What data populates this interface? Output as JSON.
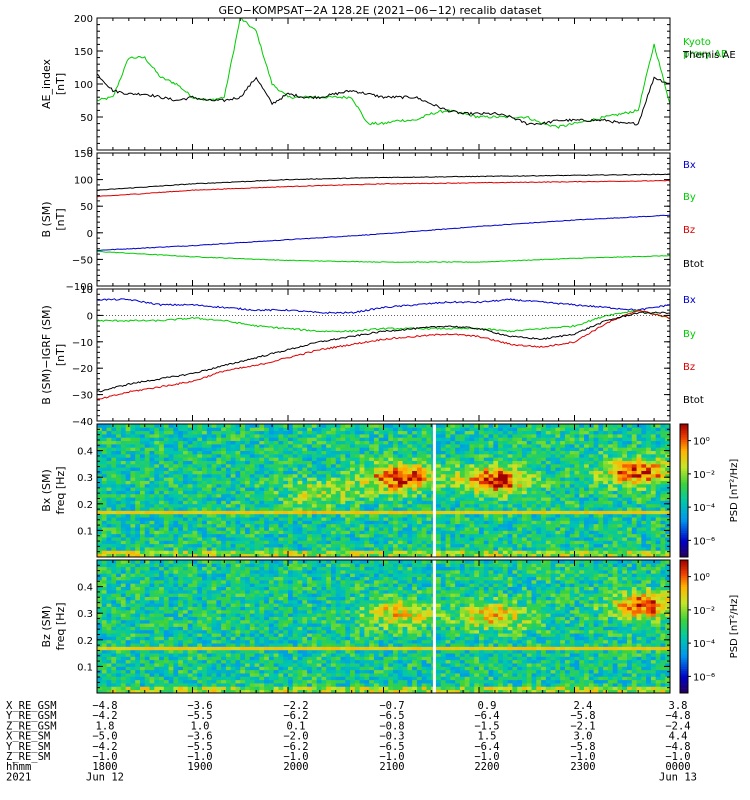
{
  "title": "GEO−KOMPSAT−2A 128.2E (2021−06−12) recalib dataset",
  "chart_data": [
    {
      "type": "line",
      "ylabel": "AE_index",
      "yunit": "[nT]",
      "ylim": [
        0,
        200
      ],
      "yticks": [
        0,
        50,
        100,
        150,
        200
      ],
      "x": [
        1800,
        1810,
        1820,
        1830,
        1840,
        1850,
        1900,
        1910,
        1920,
        1930,
        1940,
        1950,
        2000,
        2010,
        2020,
        2030,
        2040,
        2050,
        2100,
        2110,
        2120,
        2130,
        2140,
        2150,
        2200,
        2210,
        2220,
        2230,
        2240,
        2250,
        2300,
        2310,
        2320,
        2330,
        2340,
        2350,
        2400
      ],
      "series": [
        {
          "name": "Kyoto proxy AE",
          "color": "#00cc00",
          "values": [
            75,
            80,
            140,
            140,
            110,
            100,
            80,
            75,
            80,
            200,
            180,
            100,
            80,
            80,
            80,
            80,
            80,
            40,
            40,
            45,
            45,
            55,
            60,
            55,
            50,
            50,
            50,
            50,
            40,
            35,
            40,
            45,
            50,
            55,
            60,
            160,
            70
          ]
        },
        {
          "name": "Themis AE",
          "color": "#000000",
          "values": [
            115,
            90,
            85,
            85,
            80,
            75,
            80,
            75,
            75,
            80,
            110,
            70,
            85,
            80,
            80,
            85,
            90,
            85,
            80,
            80,
            80,
            70,
            60,
            55,
            55,
            55,
            50,
            40,
            40,
            45,
            45,
            45,
            45,
            40,
            40,
            110,
            100
          ]
        }
      ]
    },
    {
      "type": "line",
      "ylabel": "B (SM)",
      "yunit": "[nT]",
      "ylim": [
        -100,
        150
      ],
      "yticks": [
        -100,
        -50,
        0,
        50,
        100,
        150
      ],
      "x": [
        1800,
        1900,
        2000,
        2100,
        2200,
        2300,
        2400
      ],
      "series": [
        {
          "name": "Bx",
          "color": "#0000cc",
          "values": [
            -33,
            -24,
            -13,
            -2,
            12,
            24,
            33
          ]
        },
        {
          "name": "By",
          "color": "#00cc00",
          "values": [
            -35,
            -45,
            -52,
            -55,
            -55,
            -48,
            -43
          ]
        },
        {
          "name": "Bz",
          "color": "#dd0000",
          "values": [
            68,
            80,
            87,
            92,
            94,
            96,
            98
          ]
        },
        {
          "name": "Btot",
          "color": "#000000",
          "values": [
            80,
            92,
            100,
            104,
            106,
            108,
            110
          ]
        }
      ]
    },
    {
      "type": "line",
      "ylabel": "B (SM)−IGRF (SM)",
      "yunit": "[nT]",
      "ylim": [
        -40,
        10
      ],
      "yticks": [
        -40,
        -30,
        -20,
        -10,
        0,
        10
      ],
      "x": [
        1800,
        1820,
        1840,
        1900,
        1920,
        1940,
        2000,
        2020,
        2040,
        2100,
        2120,
        2140,
        2200,
        2220,
        2240,
        2300,
        2320,
        2340,
        2400
      ],
      "series": [
        {
          "name": "Bx",
          "color": "#0000cc",
          "values": [
            6,
            6,
            4,
            4,
            3,
            2,
            2,
            1,
            1,
            3,
            4,
            5,
            5,
            6,
            5,
            4,
            3,
            2,
            4
          ]
        },
        {
          "name": "By",
          "color": "#00cc00",
          "values": [
            -2,
            -2,
            -2,
            -1,
            -2,
            -4,
            -5,
            -6,
            -6,
            -5,
            -5,
            -5,
            -5,
            -6,
            -5,
            -4,
            0,
            2,
            -1
          ]
        },
        {
          "name": "Bz",
          "color": "#dd0000",
          "values": [
            -32,
            -29,
            -27,
            -25,
            -21,
            -19,
            -16,
            -13,
            -11,
            -9,
            -8,
            -7,
            -8,
            -11,
            -12,
            -10,
            -3,
            2,
            -1
          ]
        },
        {
          "name": "Btot",
          "color": "#000000",
          "values": [
            -29,
            -26,
            -24,
            -22,
            -19,
            -16,
            -13,
            -10,
            -8,
            -6,
            -5,
            -4,
            -5,
            -8,
            -9,
            -7,
            -2,
            1,
            1
          ]
        }
      ]
    },
    {
      "type": "heatmap",
      "ylabel": "Bx (SM)",
      "yunit": "freq [Hz]",
      "ylim": [
        0,
        0.5
      ],
      "yticks": [
        0.1,
        0.2,
        0.3,
        0.4
      ],
      "colorbar_label": "PSD [nT²/Hz]",
      "colorbar_ticks": [
        "10⁰",
        "10⁻²",
        "10⁻⁴",
        "10⁻⁶"
      ],
      "colorbar_tick_values": [
        0,
        -2,
        -4,
        -6
      ],
      "colorbar_range": [
        -7,
        1
      ],
      "gap_x": 2132,
      "line_freq": 0.167,
      "hot_spots": [
        {
          "x": 2110,
          "f": 0.3,
          "strength": 1.0
        },
        {
          "x": 2210,
          "f": 0.29,
          "strength": 1.0
        },
        {
          "x": 2340,
          "f": 0.32,
          "strength": 0.9
        },
        {
          "x": 2020,
          "f": 0.24,
          "strength": 0.4
        }
      ]
    },
    {
      "type": "heatmap",
      "ylabel": "Bz (SM)",
      "yunit": "freq [Hz]",
      "ylim": [
        0,
        0.5
      ],
      "yticks": [
        0.1,
        0.2,
        0.3,
        0.4
      ],
      "colorbar_label": "PSD [nT²/Hz]",
      "colorbar_ticks": [
        "10⁰",
        "10⁻²",
        "10⁻⁴",
        "10⁻⁶"
      ],
      "colorbar_tick_values": [
        0,
        -2,
        -4,
        -6
      ],
      "colorbar_range": [
        -7,
        1
      ],
      "gap_x": 2132,
      "line_freq": 0.167,
      "hot_spots": [
        {
          "x": 2110,
          "f": 0.3,
          "strength": 0.6
        },
        {
          "x": 2210,
          "f": 0.29,
          "strength": 0.6
        },
        {
          "x": 2345,
          "f": 0.33,
          "strength": 0.9
        }
      ]
    }
  ],
  "ephemeris": {
    "rows": [
      {
        "label": "X_RE_GSM",
        "values": [
          "−4.8",
          "−3.6",
          "−2.2",
          "−0.7",
          "0.9",
          "2.4",
          "3.8"
        ]
      },
      {
        "label": "Y_RE_GSM",
        "values": [
          "−4.2",
          "−5.5",
          "−6.2",
          "−6.5",
          "−6.4",
          "−5.8",
          "−4.8"
        ]
      },
      {
        "label": "Z_RE_GSM",
        "values": [
          "1.8",
          "1.0",
          "0.1",
          "−0.8",
          "−1.5",
          "−2.1",
          "−2.4"
        ]
      },
      {
        "label": "X_RE_SM",
        "values": [
          "−5.0",
          "−3.6",
          "−2.0",
          "−0.3",
          "1.5",
          "3.0",
          "4.4"
        ]
      },
      {
        "label": "Y_RE_SM",
        "values": [
          "−4.2",
          "−5.5",
          "−6.2",
          "−6.5",
          "−6.4",
          "−5.8",
          "−4.8"
        ]
      },
      {
        "label": "Z_RE_SM",
        "values": [
          "−1.0",
          "−1.0",
          "−1.0",
          "−1.0",
          "−1.0",
          "−1.0",
          "−1.0"
        ]
      },
      {
        "label": "hhmm",
        "values": [
          "1800",
          "1900",
          "2000",
          "2100",
          "2200",
          "2300",
          "0000"
        ]
      }
    ],
    "year": "2021",
    "dates": [
      "Jun 12",
      "Jun 13"
    ]
  }
}
